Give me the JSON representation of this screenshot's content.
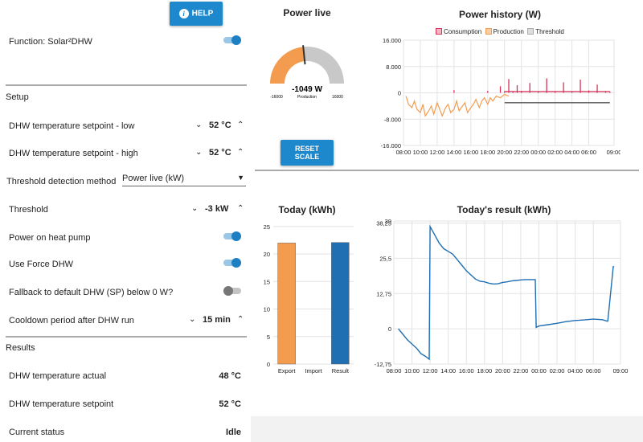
{
  "help_label": "HELP",
  "function": {
    "label": "Function: Solar²DHW",
    "on": true
  },
  "setup": {
    "title": "Setup",
    "dhw_low": {
      "label": "DHW temperature setpoint - low",
      "value": "52 °C"
    },
    "dhw_high": {
      "label": "DHW temperature setpoint - high",
      "value": "52 °C"
    },
    "threshold_method": {
      "label": "Threshold detection method",
      "value": "Power live (kW)"
    },
    "threshold": {
      "label": "Threshold",
      "value": "-3 kW"
    },
    "power_heat_pump": {
      "label": "Power on heat pump",
      "on": true
    },
    "force_dhw": {
      "label": "Use Force DHW",
      "on": true
    },
    "fallback": {
      "label": "Fallback to default DHW (SP) below 0 W?",
      "on": false
    },
    "cooldown": {
      "label": "Cooldown period after DHW run",
      "value": "15 min"
    }
  },
  "results": {
    "title": "Results",
    "actual": {
      "label": "DHW temperature actual",
      "value": "48 °C"
    },
    "setpoint": {
      "label": "DHW temperature setpoint",
      "value": "52 °C"
    },
    "status": {
      "label": "Current status",
      "value": "Idle"
    }
  },
  "gauge": {
    "title": "Power live",
    "value_label": "-1049 W",
    "value": -1049,
    "unit_label": "Production",
    "min_label": "-16000",
    "max_label": "16000",
    "min": -16000,
    "max": 16000,
    "reset_label": "RESET SCALE",
    "colors": {
      "negative": "#f39c4f",
      "rest": "#c8c8c8",
      "needle": "#333333"
    }
  },
  "chart_data": [
    {
      "type": "line",
      "title": "Power history (W)",
      "legend": [
        {
          "name": "Consumption",
          "color": "#d6325a"
        },
        {
          "name": "Production",
          "color": "#f39c4f"
        },
        {
          "name": "Threshold",
          "color": "#c0c0c0"
        }
      ],
      "y_ticks": [
        "16.000",
        "8.000",
        "0",
        "-8.000",
        "-16.000"
      ],
      "ylim": [
        -16000,
        16000
      ],
      "x_ticks": [
        "08:00",
        "10:00",
        "12:00",
        "14:00",
        "16:00",
        "18:00",
        "20:00",
        "22:00",
        "00:00",
        "02:00",
        "04:00",
        "06:00",
        "09:00"
      ],
      "xlim": [
        0,
        25
      ],
      "series": [
        {
          "name": "Production",
          "x": [
            0.3,
            0.6,
            1,
            1.3,
            1.6,
            2,
            2.3,
            2.6,
            3,
            3.3,
            3.6,
            4,
            4.3,
            4.6,
            5,
            5.3,
            5.6,
            6,
            6.3,
            6.6,
            7,
            7.3,
            7.6,
            8,
            8.3,
            8.6,
            9,
            9.3,
            9.6,
            10,
            10.3,
            10.6,
            11,
            11.5,
            12,
            12.5
          ],
          "values": [
            -1000,
            -3500,
            -4500,
            -2500,
            -5000,
            -6000,
            -3500,
            -7000,
            -5500,
            -4000,
            -6500,
            -3000,
            -5000,
            -7000,
            -4500,
            -3500,
            -6000,
            -5000,
            -2500,
            -5500,
            -4000,
            -3000,
            -6000,
            -4500,
            -3500,
            -2000,
            -4500,
            -2500,
            -1500,
            -3500,
            -1500,
            -2500,
            -1000,
            -1500,
            -500,
            -1000
          ]
        },
        {
          "name": "Consumption",
          "x": [
            6,
            10,
            11.5,
            12,
            12.5,
            13,
            13.5,
            14,
            15,
            16,
            17,
            18,
            19,
            20,
            21,
            22,
            23,
            24,
            24.5
          ],
          "values": [
            800,
            600,
            2000,
            500,
            4200,
            400,
            2300,
            600,
            3000,
            400,
            4400,
            500,
            3200,
            400,
            4000,
            700,
            2500,
            500,
            400
          ]
        },
        {
          "name": "Threshold",
          "x": [
            12,
            24.5
          ],
          "values": [
            -3000,
            -3000
          ]
        }
      ],
      "colors": {
        "Production": "#f39c4f",
        "Consumption": "#d6325a",
        "Threshold": "#555555"
      }
    },
    {
      "type": "bar",
      "title": "Today (kWh)",
      "categories": [
        "Export",
        "Import",
        "Result"
      ],
      "values": [
        22,
        0,
        22.1
      ],
      "y_ticks": [
        "25",
        "20",
        "15",
        "10",
        "5",
        "0"
      ],
      "ylim": [
        0,
        26
      ],
      "colors": [
        "#f39c4f",
        "#999999",
        "#1f6fb2"
      ]
    },
    {
      "type": "line",
      "title": "Today's result (kWh)",
      "y_ticks": [
        "39",
        "38,25",
        "25,5",
        "12,75",
        "0",
        "-12,75"
      ],
      "ylim": [
        -12.75,
        39
      ],
      "x_ticks": [
        "08:00",
        "10:00",
        "12:00",
        "14:00",
        "16:00",
        "18:00",
        "20:00",
        "22:00",
        "00:00",
        "02:00",
        "04:00",
        "06:00",
        "09:00"
      ],
      "xlim": [
        0,
        25
      ],
      "series": [
        {
          "name": "Result",
          "x": [
            0.5,
            1,
            1.5,
            2,
            2.5,
            3,
            3.5,
            3.9,
            4,
            4.5,
            5,
            5.5,
            6,
            6.5,
            7,
            7.5,
            8,
            8.5,
            9,
            9.5,
            10,
            10.5,
            11,
            11.5,
            12,
            12.5,
            13,
            13.5,
            14,
            14.5,
            15,
            15.6,
            15.7,
            16,
            17,
            18,
            19,
            20,
            21,
            22,
            23,
            23.5,
            23.6,
            24.2,
            24.3
          ],
          "values": [
            0,
            -2,
            -4,
            -5.5,
            -7,
            -9,
            -10,
            -11,
            37,
            34,
            31,
            29,
            28,
            27,
            25,
            23,
            21,
            19.5,
            18,
            17.2,
            17,
            16.5,
            16.2,
            16.3,
            16.8,
            17,
            17.3,
            17.5,
            17.7,
            17.8,
            17.8,
            17.8,
            0.5,
            1,
            1.5,
            2,
            2.6,
            3,
            3.2,
            3.5,
            3.3,
            2.8,
            2.8,
            22.5,
            22.5
          ]
        }
      ],
      "color": "#1f6fb2"
    }
  ]
}
